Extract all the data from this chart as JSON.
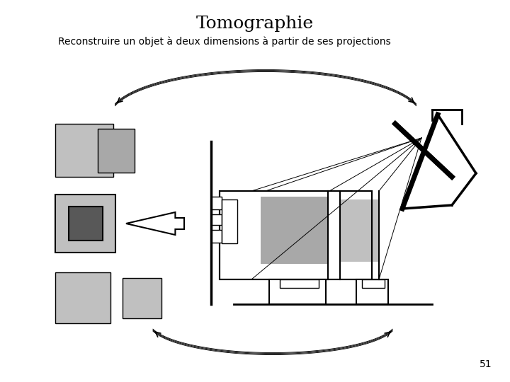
{
  "title": "Tomographie",
  "subtitle": "Reconstruire un objet à deux dimensions à partir de ses projections",
  "page_number": "51",
  "bg_color": "#ffffff",
  "title_fontsize": 18,
  "subtitle_fontsize": 10,
  "light_gray": "#c0c0c0",
  "mid_gray": "#a8a8a8",
  "dark_gray": "#585858",
  "line_gray": "#888888"
}
